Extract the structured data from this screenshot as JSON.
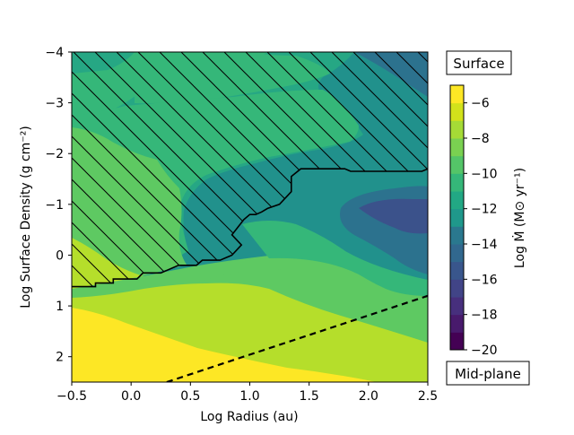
{
  "chart_data": {
    "type": "heatmap",
    "subtype": "filled-contour",
    "xlabel": "Log Radius (au)",
    "ylabel": "Log Surface Density (g cm⁻²)",
    "xlim": [
      -0.5,
      2.5
    ],
    "ylim": [
      2.5,
      -4
    ],
    "y_inverted": true,
    "xticks": [
      "−0.5",
      "0.0",
      "0.5",
      "1.0",
      "1.5",
      "2.0",
      "2.5"
    ],
    "yticks": [
      "−4",
      "−3",
      "−2",
      "−1",
      "0",
      "1",
      "2"
    ],
    "colorbar": {
      "label": "Log Ṁ (M⊙ yr⁻¹)",
      "ticks": [
        "−6",
        "−8",
        "−10",
        "−12",
        "−14",
        "−16",
        "−18",
        "−20"
      ],
      "range": [
        -20,
        -5
      ],
      "levels": [
        -20,
        -19,
        -18,
        -17,
        -16,
        -15,
        -14,
        -13,
        -12,
        -11,
        -10,
        -9,
        -8,
        -7,
        -6,
        -5
      ],
      "colormap": "viridis"
    },
    "annotations": {
      "top": "Surface",
      "bottom": "Mid-plane"
    },
    "boundary_line": {
      "style": "solid black, hatched region above-left",
      "points": [
        [
          -0.5,
          0.62
        ],
        [
          -0.3,
          0.62
        ],
        [
          -0.3,
          0.55
        ],
        [
          -0.15,
          0.55
        ],
        [
          -0.15,
          0.47
        ],
        [
          0.05,
          0.47
        ],
        [
          0.1,
          0.35
        ],
        [
          0.25,
          0.35
        ],
        [
          0.4,
          0.2
        ],
        [
          0.55,
          0.2
        ],
        [
          0.6,
          0.1
        ],
        [
          0.75,
          0.1
        ],
        [
          0.85,
          0.0
        ],
        [
          0.93,
          -0.2
        ],
        [
          0.85,
          -0.4
        ],
        [
          0.95,
          -0.7
        ],
        [
          1.0,
          -0.8
        ],
        [
          1.05,
          -0.8
        ],
        [
          1.1,
          -0.85
        ],
        [
          1.15,
          -0.92
        ],
        [
          1.25,
          -1.0
        ],
        [
          1.35,
          -1.25
        ],
        [
          1.35,
          -1.55
        ],
        [
          1.43,
          -1.7
        ],
        [
          1.8,
          -1.7
        ],
        [
          1.85,
          -1.65
        ],
        [
          2.45,
          -1.65
        ],
        [
          2.5,
          -1.7
        ]
      ]
    },
    "dashed_line": {
      "style": "dashed black",
      "points": [
        [
          0.3,
          2.5
        ],
        [
          2.5,
          0.8
        ]
      ]
    },
    "bands": [
      {
        "label": "−6",
        "color": "#fde725"
      },
      {
        "label": "−8",
        "color": "#b5de2b"
      },
      {
        "label": "−10",
        "color": "#5ec962"
      },
      {
        "label": "−11",
        "color": "#35b779"
      },
      {
        "label": "−12",
        "color": "#26a784"
      },
      {
        "label": "−13",
        "color": "#1f988b"
      },
      {
        "label": "−14",
        "color": "#218e8d"
      },
      {
        "label": "−15",
        "color": "#2c728e"
      },
      {
        "label": "−16",
        "color": "#3b528b"
      }
    ]
  }
}
